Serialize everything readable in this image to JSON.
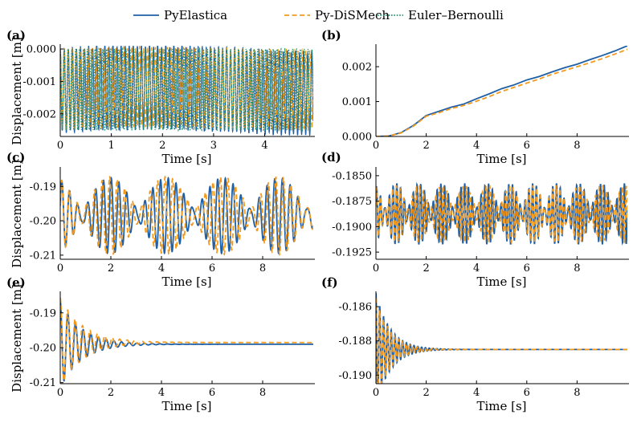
{
  "legend": {
    "placement": "top-center",
    "entries": [
      {
        "label": "PyElastica",
        "color": "#1f5fa6",
        "style": "solid"
      },
      {
        "label": "Py-DiSMech",
        "color": "#f39a1e",
        "style": "dashed"
      },
      {
        "label": "Euler–Bernoulli",
        "color": "#23956b",
        "style": "dotted"
      }
    ]
  },
  "chart_data": [
    {
      "panel": "(a)",
      "type": "line",
      "xlabel": "Time [s]",
      "ylabel": "Displacement [m]",
      "xlim": [
        0,
        4.95
      ],
      "ylim": [
        -0.0027,
        0.0001
      ],
      "xticks": [
        0,
        1,
        2,
        3,
        4
      ],
      "xtick_labels": [
        "0",
        "1",
        "2",
        "3",
        "4"
      ],
      "yticks": [
        0,
        -0.001,
        -0.002
      ],
      "ytick_labels": [
        "0.000",
        "-0.001",
        "-0.002"
      ],
      "series": [
        {
          "name": "PyElastica",
          "signal": {
            "kind": "fast_osc",
            "base": -0.00128,
            "amp": 0.00128,
            "freq": 12.6,
            "noise": 4e-05,
            "beat": 0.0001
          }
        },
        {
          "name": "Py-DiSMech",
          "signal": {
            "kind": "fast_osc",
            "base": -0.00122,
            "amp": 0.00122,
            "freq": 12.9,
            "noise": 3e-05,
            "beat": 5e-05
          }
        },
        {
          "name": "Euler–Bernoulli",
          "signal": {
            "kind": "fast_osc",
            "base": -0.00125,
            "amp": 0.00125,
            "freq": 13.2,
            "noise": 0.0,
            "beat": 0.0
          }
        }
      ]
    },
    {
      "panel": "(b)",
      "type": "line",
      "xlabel": "Time [s]",
      "ylabel": "",
      "xlim": [
        0,
        10
      ],
      "ylim": [
        0,
        0.0026
      ],
      "xticks": [
        0,
        2,
        4,
        6,
        8
      ],
      "xtick_labels": [
        "0",
        "2",
        "4",
        "6",
        "8"
      ],
      "yticks": [
        0,
        0.001,
        0.002
      ],
      "ytick_labels": [
        "0.000",
        "0.001",
        "0.002"
      ],
      "series": [
        {
          "name": "PyElastica",
          "x": [
            0,
            0.5,
            1.0,
            1.5,
            2.0,
            2.5,
            3.0,
            3.5,
            4.0,
            4.5,
            5.0,
            5.5,
            6.0,
            6.5,
            7.0,
            7.5,
            8.0,
            8.5,
            9.0,
            9.5,
            10.0
          ],
          "y": [
            0,
            1e-05,
            0.00011,
            0.00032,
            0.0006,
            0.00072,
            0.00084,
            0.00093,
            0.00108,
            0.00122,
            0.00137,
            0.00148,
            0.00162,
            0.00172,
            0.00185,
            0.00197,
            0.00207,
            0.0022,
            0.00232,
            0.00245,
            0.0026
          ]
        },
        {
          "name": "Py-DiSMech",
          "x": [
            0,
            0.5,
            1.0,
            1.5,
            2.0,
            2.5,
            3.0,
            3.5,
            4.0,
            4.5,
            5.0,
            5.5,
            6.0,
            6.5,
            7.0,
            7.5,
            8.0,
            8.5,
            9.0,
            9.5,
            10.0
          ],
          "y": [
            0,
            1e-05,
            0.0001,
            0.0003,
            0.00058,
            0.00068,
            0.0008,
            0.00089,
            0.00101,
            0.00114,
            0.00129,
            0.00141,
            0.00153,
            0.00165,
            0.00178,
            0.00189,
            0.002,
            0.00211,
            0.00223,
            0.00236,
            0.0025
          ]
        }
      ]
    },
    {
      "panel": "(c)",
      "type": "line",
      "xlabel": "Time [s]",
      "ylabel": "Displacement [m]",
      "xlim": [
        0,
        10
      ],
      "ylim": [
        -0.2112,
        -0.1848
      ],
      "xticks": [
        0,
        2,
        4,
        6,
        8
      ],
      "xtick_labels": [
        "0",
        "2",
        "4",
        "6",
        "8"
      ],
      "yticks": [
        -0.19,
        -0.2,
        -0.21
      ],
      "ytick_labels": [
        "-0.19",
        "-0.20",
        "-0.21"
      ],
      "series": [
        {
          "name": "PyElastica",
          "signal": {
            "kind": "beat_osc",
            "base": -0.1985,
            "amp1": 0.0065,
            "f1": 3.1,
            "amp2": 0.0045,
            "f2": 3.55
          }
        },
        {
          "name": "Py-DiSMech",
          "signal": {
            "kind": "beat_osc",
            "base": -0.1985,
            "amp1": 0.0068,
            "f1": 3.2,
            "amp2": 0.0045,
            "f2": 3.65
          }
        }
      ]
    },
    {
      "panel": "(d)",
      "type": "line",
      "xlabel": "Time [s]",
      "ylabel": "",
      "xlim": [
        0,
        10
      ],
      "ylim": [
        -0.1932,
        -0.1843
      ],
      "xticks": [
        0,
        2,
        4,
        6,
        8
      ],
      "xtick_labels": [
        "0",
        "2",
        "4",
        "6",
        "8"
      ],
      "yticks": [
        -0.185,
        -0.1875,
        -0.19,
        -0.1925
      ],
      "ytick_labels": [
        "-0.1850",
        "-0.1875",
        "-0.1900",
        "-0.1925"
      ],
      "series": [
        {
          "name": "PyElastica",
          "signal": {
            "kind": "beat_osc",
            "base": -0.18875,
            "amp1": 0.0018,
            "f1": 6.3,
            "amp2": 0.0012,
            "f2": 7.4
          }
        },
        {
          "name": "Py-DiSMech",
          "signal": {
            "kind": "beat_osc",
            "base": -0.18875,
            "amp1": 0.0017,
            "f1": 6.45,
            "amp2": 0.0011,
            "f2": 7.55
          }
        }
      ]
    },
    {
      "panel": "(e)",
      "type": "line",
      "xlabel": "Time [s]",
      "ylabel": "Displacement [m]",
      "xlim": [
        0,
        10
      ],
      "ylim": [
        -0.2103,
        -0.1843
      ],
      "xticks": [
        0,
        2,
        4,
        6,
        8
      ],
      "xtick_labels": [
        "0",
        "2",
        "4",
        "6",
        "8"
      ],
      "yticks": [
        -0.19,
        -0.2,
        -0.21
      ],
      "ytick_labels": [
        "-0.19",
        "-0.20",
        "-0.21"
      ],
      "series": [
        {
          "name": "PyElastica",
          "signal": {
            "kind": "damped",
            "base": -0.199,
            "amp": 0.0125,
            "freq": 3.3,
            "decay": 1.2
          }
        },
        {
          "name": "Py-DiSMech",
          "signal": {
            "kind": "damped",
            "base": -0.1985,
            "amp": 0.0128,
            "freq": 3.4,
            "decay": 1.1
          }
        }
      ]
    },
    {
      "panel": "(f)",
      "type": "line",
      "xlabel": "Time [s]",
      "ylabel": "",
      "xlim": [
        0,
        10
      ],
      "ylim": [
        -0.1905,
        -0.1852
      ],
      "xticks": [
        0,
        2,
        4,
        6,
        8
      ],
      "xtick_labels": [
        "0",
        "2",
        "4",
        "6",
        "8"
      ],
      "yticks": [
        -0.186,
        -0.188,
        -0.19
      ],
      "ytick_labels": [
        "-0.186",
        "-0.188",
        "-0.190"
      ],
      "series": [
        {
          "name": "PyElastica",
          "signal": {
            "kind": "damped",
            "base": -0.1885,
            "amp": 0.0033,
            "freq": 6.6,
            "decay": 1.75
          }
        },
        {
          "name": "Py-DiSMech",
          "signal": {
            "kind": "damped",
            "base": -0.1885,
            "amp": 0.003,
            "freq": 6.7,
            "decay": 1.8
          }
        }
      ]
    }
  ]
}
